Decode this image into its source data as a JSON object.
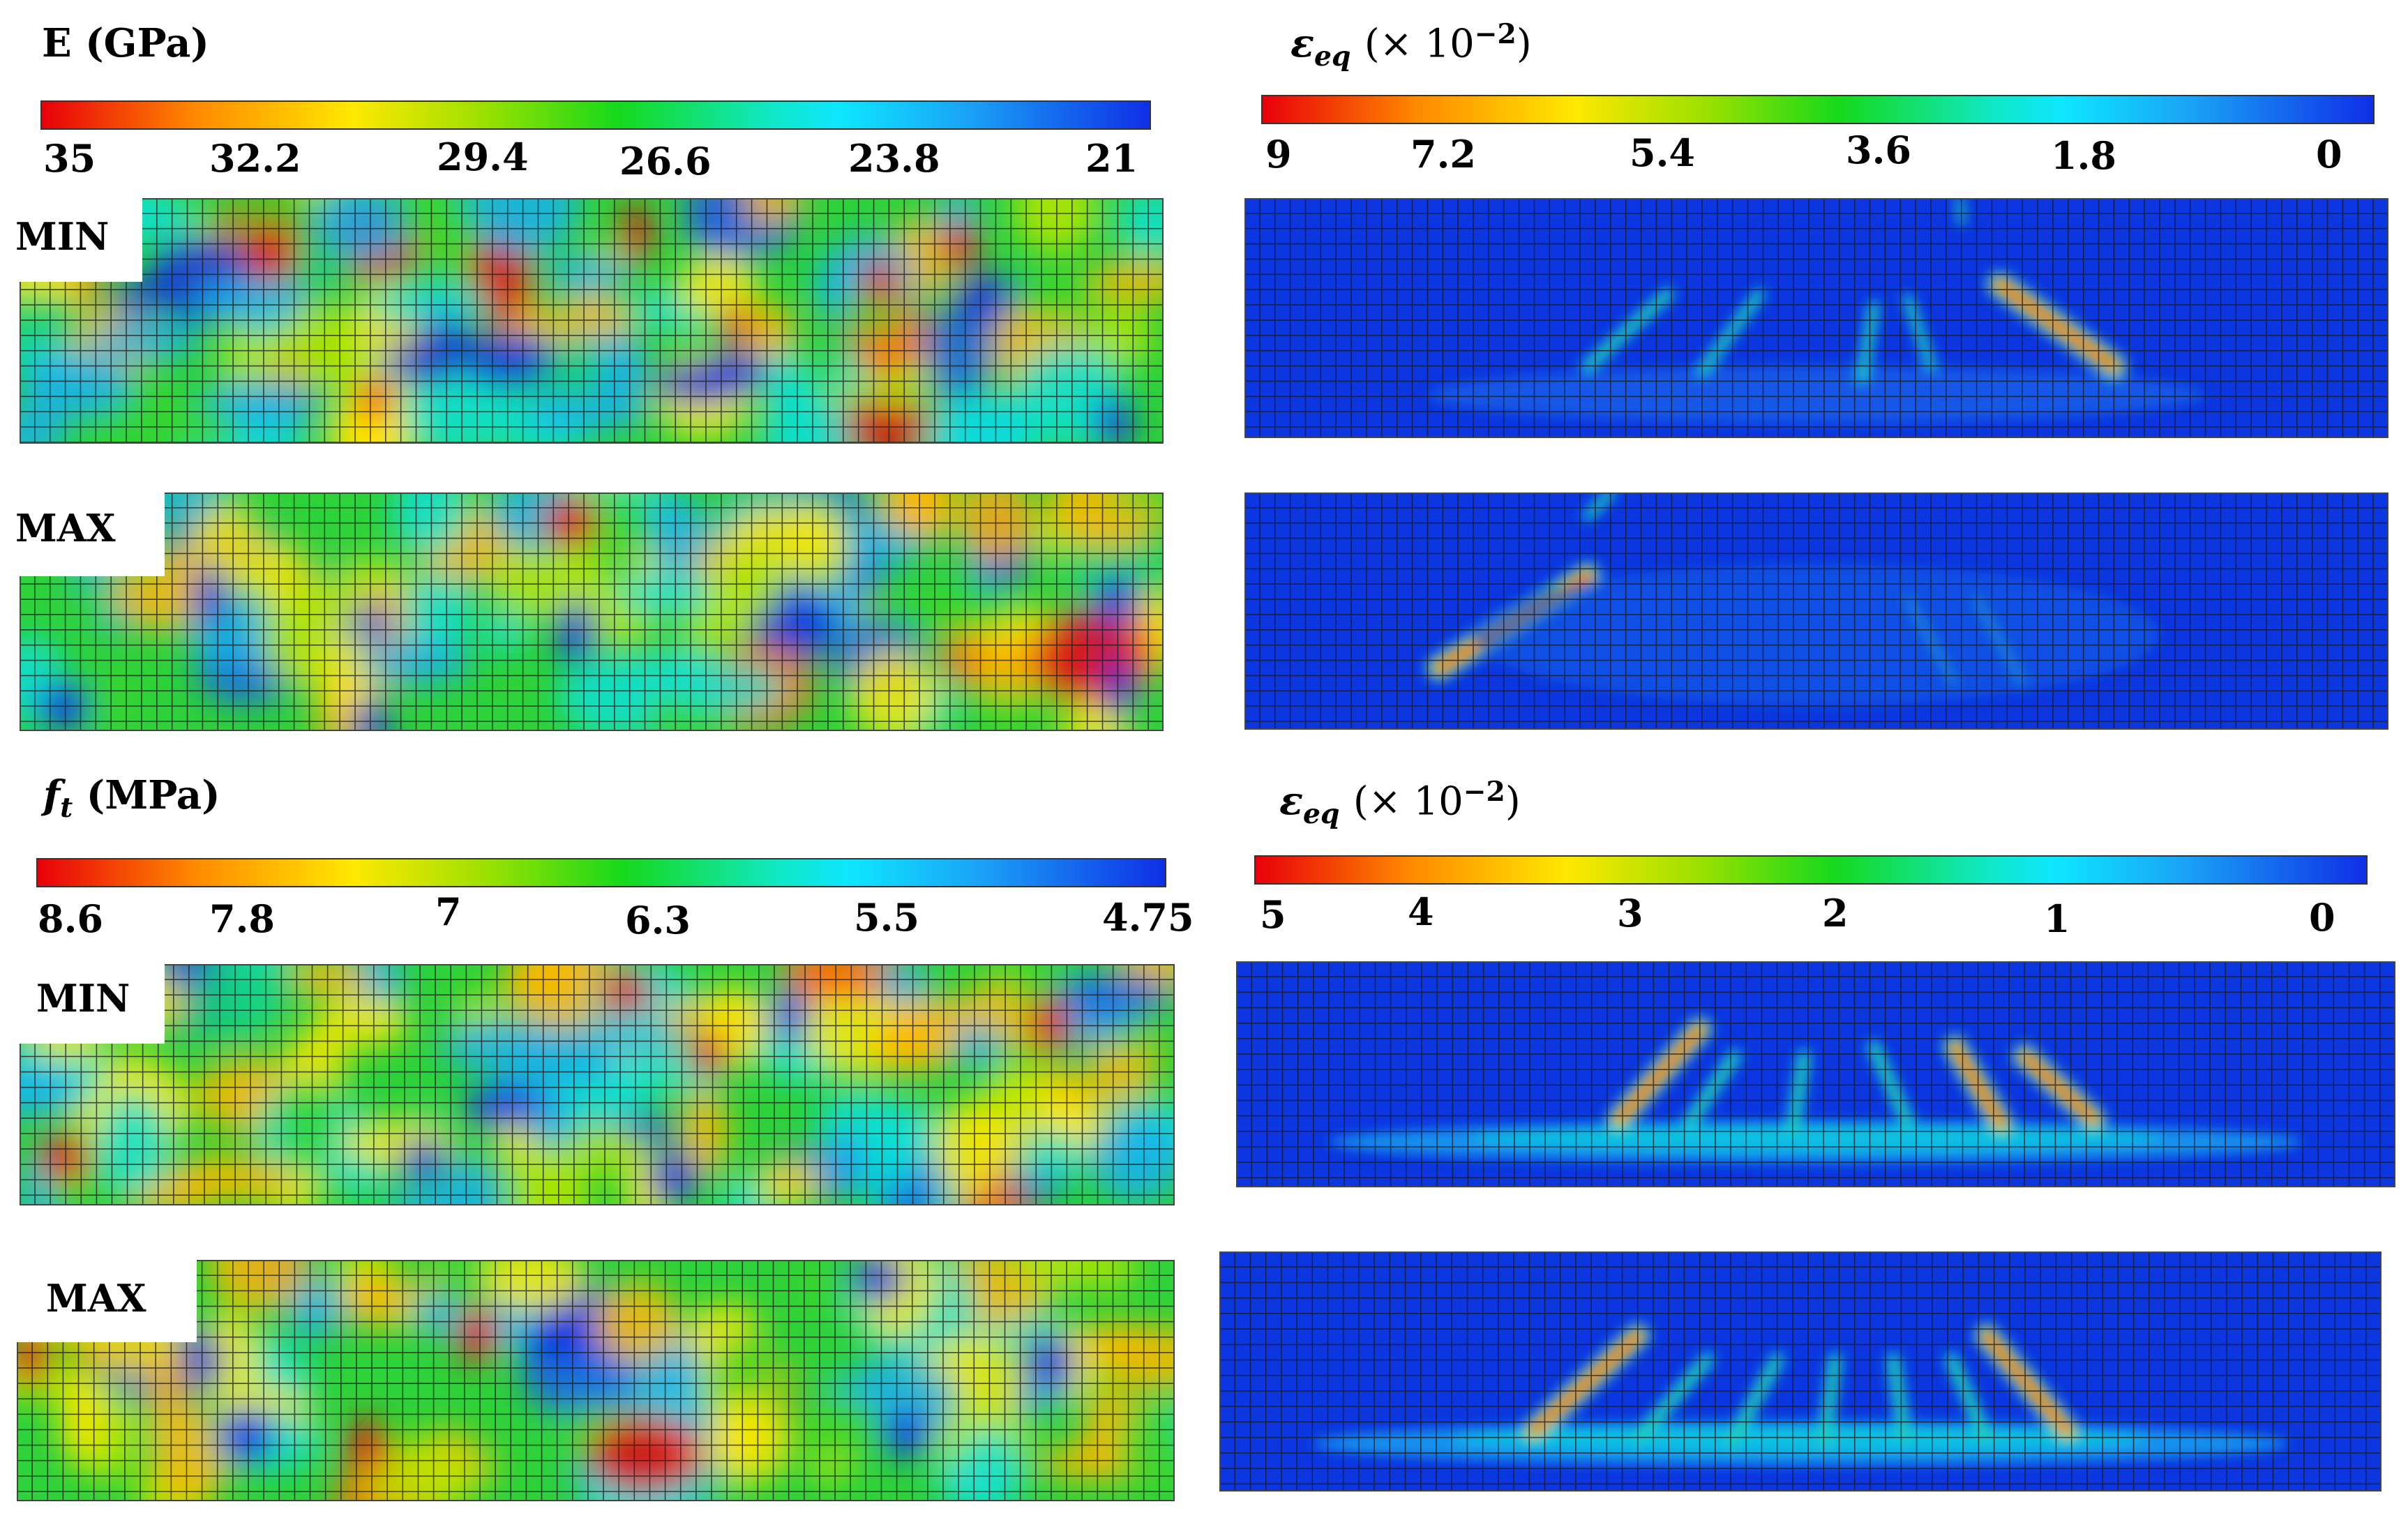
{
  "sections": [
    {
      "id": "top",
      "left_title": "E (GPa)",
      "left_ticks": [
        "35",
        "32.2",
        "29.4",
        "26.6",
        "23.8",
        "21"
      ],
      "right_title_symbol": "ε",
      "right_title_sub": "eq",
      "right_title_scale": "(× 10",
      "right_title_exp": "−2",
      "right_title_close": ")",
      "right_ticks": [
        "9",
        "7.2",
        "5.4",
        "3.6",
        "1.8",
        "0"
      ],
      "rows": [
        {
          "tag": "MIN"
        },
        {
          "tag": "MAX"
        }
      ]
    },
    {
      "id": "bottom",
      "left_title_symbol": "f",
      "left_title_sub": "t",
      "left_title_unit": "(MPa)",
      "left_ticks": [
        "8.6",
        "7.8",
        "7",
        "6.3",
        "5.5",
        "4.75"
      ],
      "right_title_symbol": "ε",
      "right_title_sub": "eq",
      "right_title_scale": "(× 10",
      "right_title_exp": "−2",
      "right_title_close": ")",
      "right_ticks": [
        "5",
        "4",
        "3",
        "2",
        "1",
        "0"
      ],
      "rows": [
        {
          "tag": "MIN"
        },
        {
          "tag": "MAX"
        }
      ]
    }
  ],
  "colors": {
    "strain_background": "#0b36e0",
    "mesh_line": "#1a1a1a",
    "field_mid": "#22c832"
  }
}
